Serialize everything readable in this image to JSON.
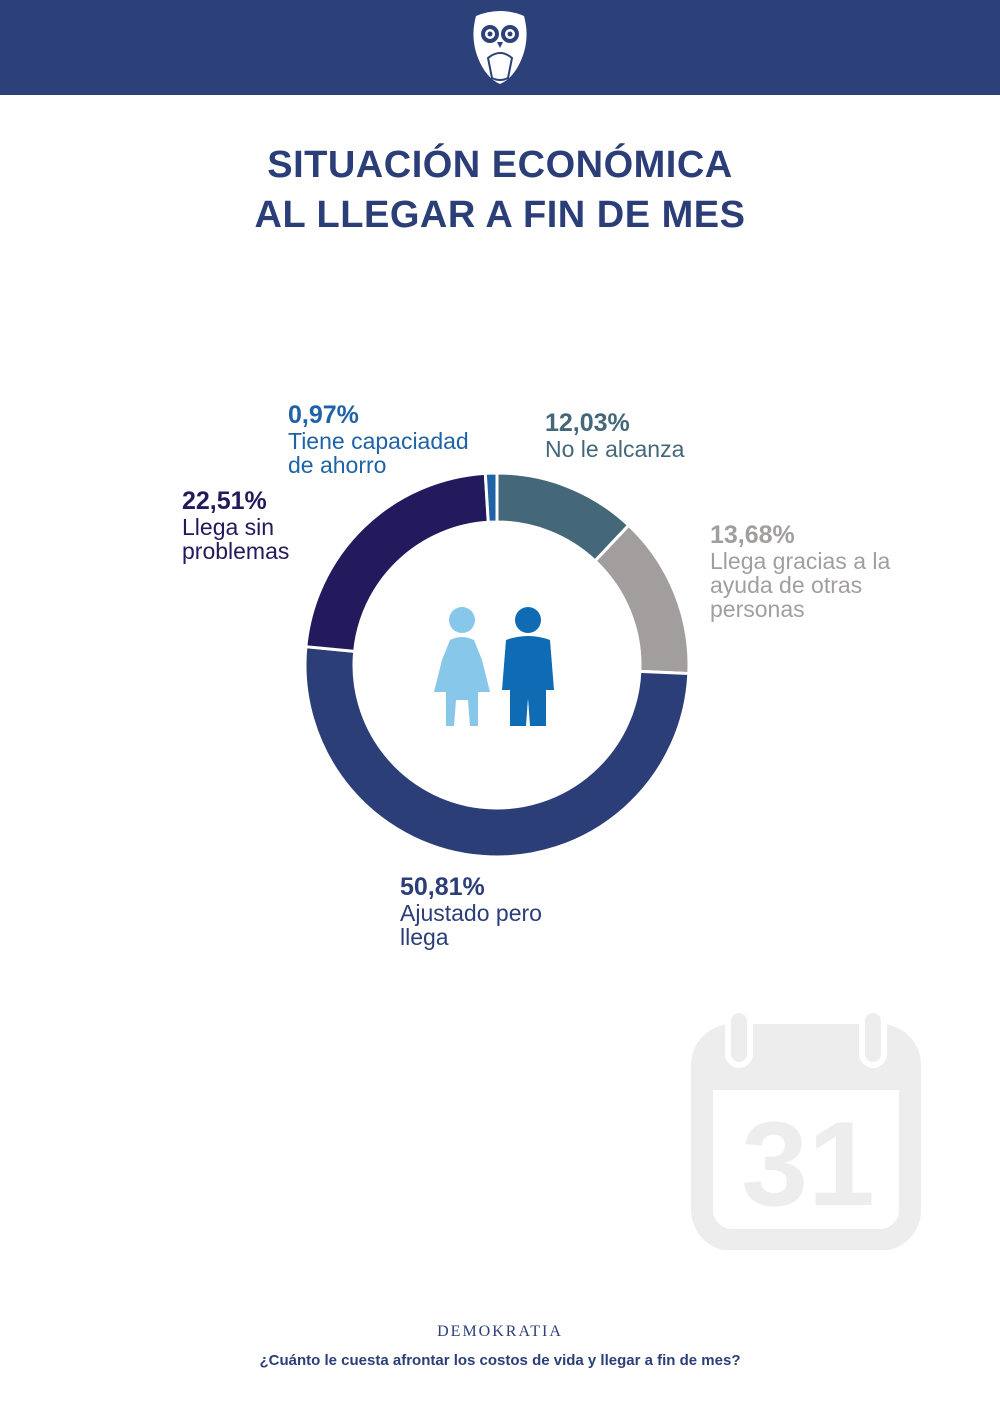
{
  "header": {
    "logo_icon": "owl-icon"
  },
  "title": {
    "line1": "SITUACIÓN ECONÓMICA",
    "line2": "AL LLEGAR A FIN DE MES"
  },
  "chart_data": {
    "type": "pie",
    "title": "SITUACIÓN ECONÓMICA AL LLEGAR A FIN DE MES",
    "slices": [
      {
        "label_line1": "No le alcanza",
        "label_line2": "",
        "label_line3": "",
        "value": 12.03,
        "display": "12,03%",
        "color": "#446779"
      },
      {
        "label_line1": "Llega gracias a la",
        "label_line2": "ayuda de otras",
        "label_line3": "personas",
        "value": 13.68,
        "display": "13,68%",
        "color": "#a29e9e"
      },
      {
        "label_line1": "Ajustado pero",
        "label_line2": "llega",
        "label_line3": "",
        "value": 50.81,
        "display": "50,81%",
        "color": "#2c3e78"
      },
      {
        "label_line1": "Llega sin",
        "label_line2": "problemas",
        "label_line3": "",
        "value": 22.51,
        "display": "22,51%",
        "color": "#221a5c"
      },
      {
        "label_line1": "Tiene capaciadad",
        "label_line2": "de ahorro",
        "label_line3": "",
        "value": 0.97,
        "display": "0,97%",
        "color": "#1f63a6"
      }
    ],
    "center_icon": "people-icon",
    "colors": {
      "woman": "#86c7ea",
      "man": "#0f6bb4"
    }
  },
  "decor": {
    "calendar_icon": "calendar-icon",
    "calendar_day": "31"
  },
  "footer": {
    "brand": "DEMOKRATIA",
    "question": "¿Cuánto le cuesta afrontar los costos de vida y llegar a fin de mes?"
  }
}
